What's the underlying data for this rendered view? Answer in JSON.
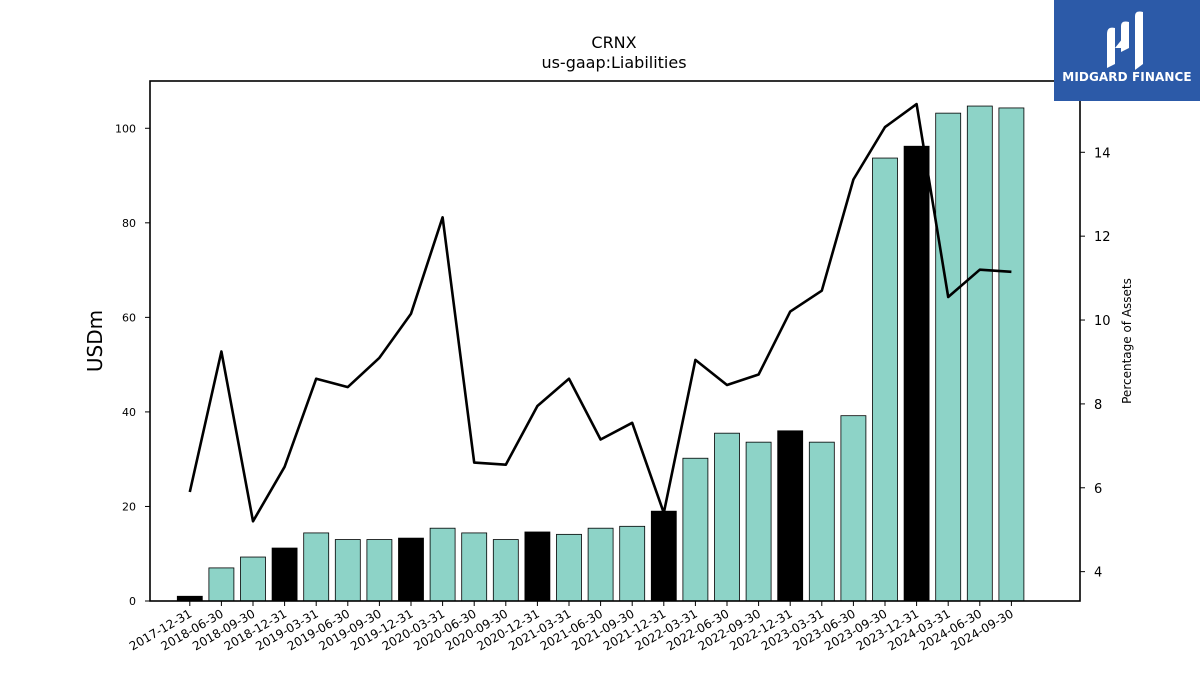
{
  "brand": {
    "name": "MIDGARD FINANCE",
    "logo_icon": "midgard-logo-icon",
    "color": "#2c5aa8"
  },
  "chart_data": {
    "type": "bar",
    "title": "CRNX",
    "subtitle": "us-gaap:Liabilities",
    "ylabel": "USDm",
    "y2label": "Percentage of Assets",
    "ylim": [
      0,
      110
    ],
    "y2lim": [
      3.3,
      15.7
    ],
    "yticks": [
      0,
      20,
      40,
      60,
      80,
      100
    ],
    "y2ticks": [
      4,
      6,
      8,
      10,
      12,
      14
    ],
    "categories": [
      "2017-12-31",
      "2018-06-30",
      "2018-09-30",
      "2018-12-31",
      "2019-03-31",
      "2019-06-30",
      "2019-09-30",
      "2019-12-31",
      "2020-03-31",
      "2020-06-30",
      "2020-09-30",
      "2020-12-31",
      "2021-03-31",
      "2021-06-30",
      "2021-09-30",
      "2021-12-31",
      "2022-03-31",
      "2022-06-30",
      "2022-09-30",
      "2022-12-31",
      "2023-03-31",
      "2023-06-30",
      "2023-09-30",
      "2023-12-31",
      "2024-03-31",
      "2024-06-30",
      "2024-09-30"
    ],
    "series": [
      {
        "kind": "bar",
        "values": [
          1.0,
          7.0,
          9.3,
          11.2,
          14.4,
          13.0,
          13.0,
          13.3,
          15.4,
          14.4,
          13.0,
          14.6,
          14.1,
          15.4,
          15.8,
          19.0,
          30.2,
          35.5,
          33.6,
          36.0,
          33.6,
          39.2,
          93.7,
          96.2,
          103.2,
          104.7,
          104.3
        ]
      },
      {
        "kind": "line",
        "axis": "right",
        "values": [
          5.9,
          9.25,
          5.2,
          6.5,
          8.6,
          8.4,
          9.1,
          10.15,
          12.45,
          6.6,
          6.55,
          7.95,
          8.6,
          7.15,
          7.55,
          5.4,
          9.05,
          8.45,
          8.7,
          10.2,
          10.7,
          13.35,
          14.6,
          15.15,
          10.55,
          11.2,
          11.15
        ]
      }
    ],
    "highlight_categories": [
      "2017-12-31",
      "2018-12-31",
      "2019-12-31",
      "2020-12-31",
      "2021-12-31",
      "2022-12-31",
      "2023-12-31"
    ],
    "colors": {
      "bar": "#8dd3c7",
      "highlight_bar": "#000000",
      "line": "#000000",
      "edge": "#000000"
    },
    "grid": false,
    "legend": "none"
  }
}
